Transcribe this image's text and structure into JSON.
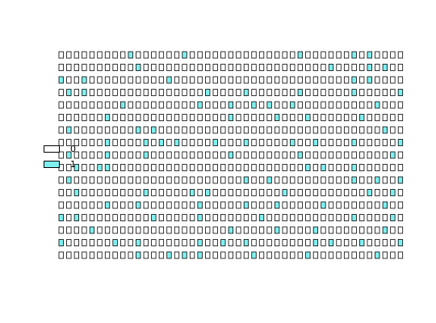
{
  "chart_data": {
    "type": "heatmap",
    "title": "",
    "xlabel": "",
    "ylabel": "",
    "n_rows": 17,
    "n_cols": 45,
    "colors": {
      "0": "#ffffff",
      "1": "#7ff0f0"
    },
    "legend": {
      "placement": "left",
      "entries": [
        {
          "label": "0",
          "value": 0,
          "color": "#ffffff"
        },
        {
          "label": "1",
          "value": 1,
          "color": "#7ff0f0"
        }
      ]
    },
    "cells": [
      [
        0,
        0,
        0,
        0,
        0,
        0,
        0,
        0,
        0,
        1,
        0,
        0,
        0,
        0,
        0,
        0,
        1,
        0,
        0,
        0,
        0,
        0,
        0,
        0,
        0,
        0,
        0,
        0,
        0,
        0,
        0,
        1,
        0,
        0,
        0,
        0,
        0,
        0,
        1,
        0,
        1,
        0,
        0,
        0,
        0
      ],
      [
        0,
        0,
        0,
        0,
        0,
        0,
        0,
        0,
        0,
        0,
        1,
        0,
        0,
        0,
        0,
        0,
        0,
        0,
        0,
        0,
        0,
        0,
        0,
        0,
        0,
        0,
        0,
        0,
        0,
        0,
        0,
        0,
        0,
        0,
        0,
        1,
        0,
        0,
        0,
        0,
        1,
        0,
        1,
        0,
        0
      ],
      [
        1,
        0,
        0,
        1,
        0,
        0,
        0,
        0,
        0,
        0,
        0,
        0,
        0,
        0,
        1,
        0,
        0,
        0,
        0,
        0,
        0,
        0,
        0,
        0,
        0,
        0,
        0,
        0,
        0,
        0,
        0,
        0,
        0,
        0,
        0,
        0,
        0,
        0,
        1,
        0,
        1,
        0,
        0,
        0,
        0
      ],
      [
        0,
        1,
        0,
        1,
        0,
        0,
        0,
        0,
        0,
        0,
        0,
        0,
        0,
        0,
        0,
        0,
        0,
        0,
        0,
        1,
        0,
        0,
        0,
        0,
        1,
        0,
        0,
        0,
        0,
        0,
        0,
        1,
        0,
        0,
        0,
        0,
        0,
        0,
        1,
        0,
        0,
        0,
        0,
        0,
        1
      ],
      [
        0,
        0,
        0,
        0,
        0,
        0,
        0,
        0,
        1,
        0,
        0,
        0,
        0,
        0,
        0,
        0,
        0,
        0,
        1,
        0,
        0,
        0,
        1,
        0,
        0,
        1,
        0,
        1,
        0,
        0,
        1,
        0,
        0,
        0,
        0,
        0,
        0,
        0,
        0,
        0,
        0,
        1,
        0,
        0,
        0
      ],
      [
        0,
        0,
        0,
        0,
        0,
        0,
        1,
        0,
        0,
        0,
        0,
        0,
        0,
        0,
        0,
        0,
        0,
        0,
        0,
        0,
        0,
        0,
        1,
        0,
        0,
        0,
        0,
        0,
        1,
        0,
        0,
        0,
        1,
        0,
        0,
        0,
        0,
        0,
        0,
        1,
        0,
        0,
        0,
        0,
        0
      ],
      [
        0,
        1,
        0,
        0,
        0,
        0,
        0,
        0,
        0,
        0,
        1,
        0,
        1,
        0,
        0,
        0,
        0,
        0,
        0,
        0,
        0,
        0,
        0,
        0,
        0,
        0,
        0,
        0,
        0,
        0,
        0,
        0,
        0,
        0,
        0,
        0,
        0,
        0,
        0,
        0,
        0,
        0,
        1,
        0,
        0
      ],
      [
        0,
        0,
        0,
        0,
        0,
        0,
        1,
        0,
        0,
        0,
        0,
        1,
        0,
        1,
        0,
        1,
        0,
        0,
        0,
        0,
        1,
        0,
        0,
        0,
        1,
        0,
        0,
        0,
        0,
        0,
        1,
        0,
        0,
        1,
        0,
        0,
        0,
        0,
        1,
        0,
        0,
        0,
        0,
        0,
        1
      ],
      [
        0,
        1,
        0,
        0,
        0,
        0,
        1,
        0,
        0,
        0,
        0,
        1,
        0,
        0,
        0,
        0,
        0,
        0,
        0,
        0,
        0,
        0,
        1,
        0,
        0,
        0,
        0,
        0,
        0,
        0,
        0,
        1,
        0,
        0,
        0,
        0,
        0,
        0,
        0,
        0,
        0,
        0,
        0,
        1,
        0
      ],
      [
        0,
        0,
        1,
        0,
        0,
        1,
        1,
        0,
        0,
        0,
        0,
        0,
        0,
        0,
        0,
        0,
        0,
        0,
        0,
        0,
        0,
        0,
        0,
        0,
        0,
        0,
        0,
        0,
        0,
        0,
        0,
        0,
        1,
        0,
        1,
        0,
        0,
        0,
        1,
        0,
        0,
        0,
        0,
        0,
        0
      ],
      [
        0,
        1,
        0,
        0,
        0,
        0,
        0,
        0,
        0,
        0,
        0,
        0,
        0,
        0,
        0,
        0,
        0,
        0,
        0,
        0,
        0,
        0,
        0,
        0,
        1,
        0,
        0,
        1,
        0,
        0,
        0,
        0,
        0,
        0,
        0,
        0,
        0,
        0,
        1,
        0,
        0,
        1,
        0,
        0,
        1
      ],
      [
        0,
        0,
        1,
        0,
        0,
        0,
        0,
        0,
        0,
        0,
        0,
        1,
        0,
        0,
        0,
        0,
        0,
        1,
        0,
        1,
        0,
        0,
        0,
        0,
        0,
        0,
        0,
        0,
        0,
        1,
        0,
        0,
        0,
        0,
        0,
        0,
        0,
        0,
        0,
        0,
        1,
        0,
        0,
        1,
        0
      ],
      [
        0,
        0,
        0,
        0,
        0,
        0,
        1,
        0,
        0,
        0,
        1,
        0,
        0,
        0,
        0,
        0,
        0,
        0,
        1,
        0,
        0,
        0,
        0,
        0,
        1,
        0,
        0,
        0,
        1,
        0,
        0,
        0,
        0,
        0,
        1,
        0,
        0,
        0,
        0,
        0,
        0,
        0,
        1,
        0,
        0
      ],
      [
        1,
        0,
        1,
        0,
        0,
        0,
        0,
        0,
        0,
        0,
        0,
        0,
        1,
        0,
        0,
        0,
        0,
        0,
        1,
        0,
        0,
        0,
        0,
        0,
        0,
        0,
        1,
        0,
        0,
        0,
        0,
        0,
        0,
        0,
        0,
        0,
        0,
        0,
        1,
        0,
        0,
        0,
        0,
        1,
        0
      ],
      [
        0,
        0,
        0,
        0,
        1,
        0,
        0,
        0,
        0,
        0,
        0,
        0,
        0,
        0,
        0,
        0,
        0,
        0,
        0,
        0,
        0,
        0,
        1,
        0,
        0,
        0,
        0,
        0,
        1,
        0,
        0,
        0,
        0,
        1,
        0,
        0,
        0,
        0,
        0,
        0,
        0,
        0,
        1,
        0,
        0
      ],
      [
        1,
        0,
        0,
        0,
        0,
        0,
        0,
        1,
        0,
        0,
        1,
        0,
        0,
        0,
        0,
        0,
        0,
        0,
        1,
        0,
        0,
        1,
        0,
        0,
        1,
        0,
        0,
        0,
        0,
        0,
        0,
        0,
        0,
        1,
        0,
        1,
        0,
        0,
        0,
        1,
        0,
        0,
        0,
        0,
        1
      ],
      [
        0,
        0,
        0,
        0,
        0,
        0,
        0,
        0,
        0,
        0,
        1,
        0,
        0,
        0,
        1,
        0,
        1,
        0,
        1,
        0,
        0,
        0,
        0,
        0,
        0,
        1,
        0,
        0,
        0,
        0,
        0,
        0,
        1,
        0,
        0,
        0,
        0,
        0,
        0,
        0,
        0,
        1,
        0,
        0,
        0
      ]
    ]
  }
}
